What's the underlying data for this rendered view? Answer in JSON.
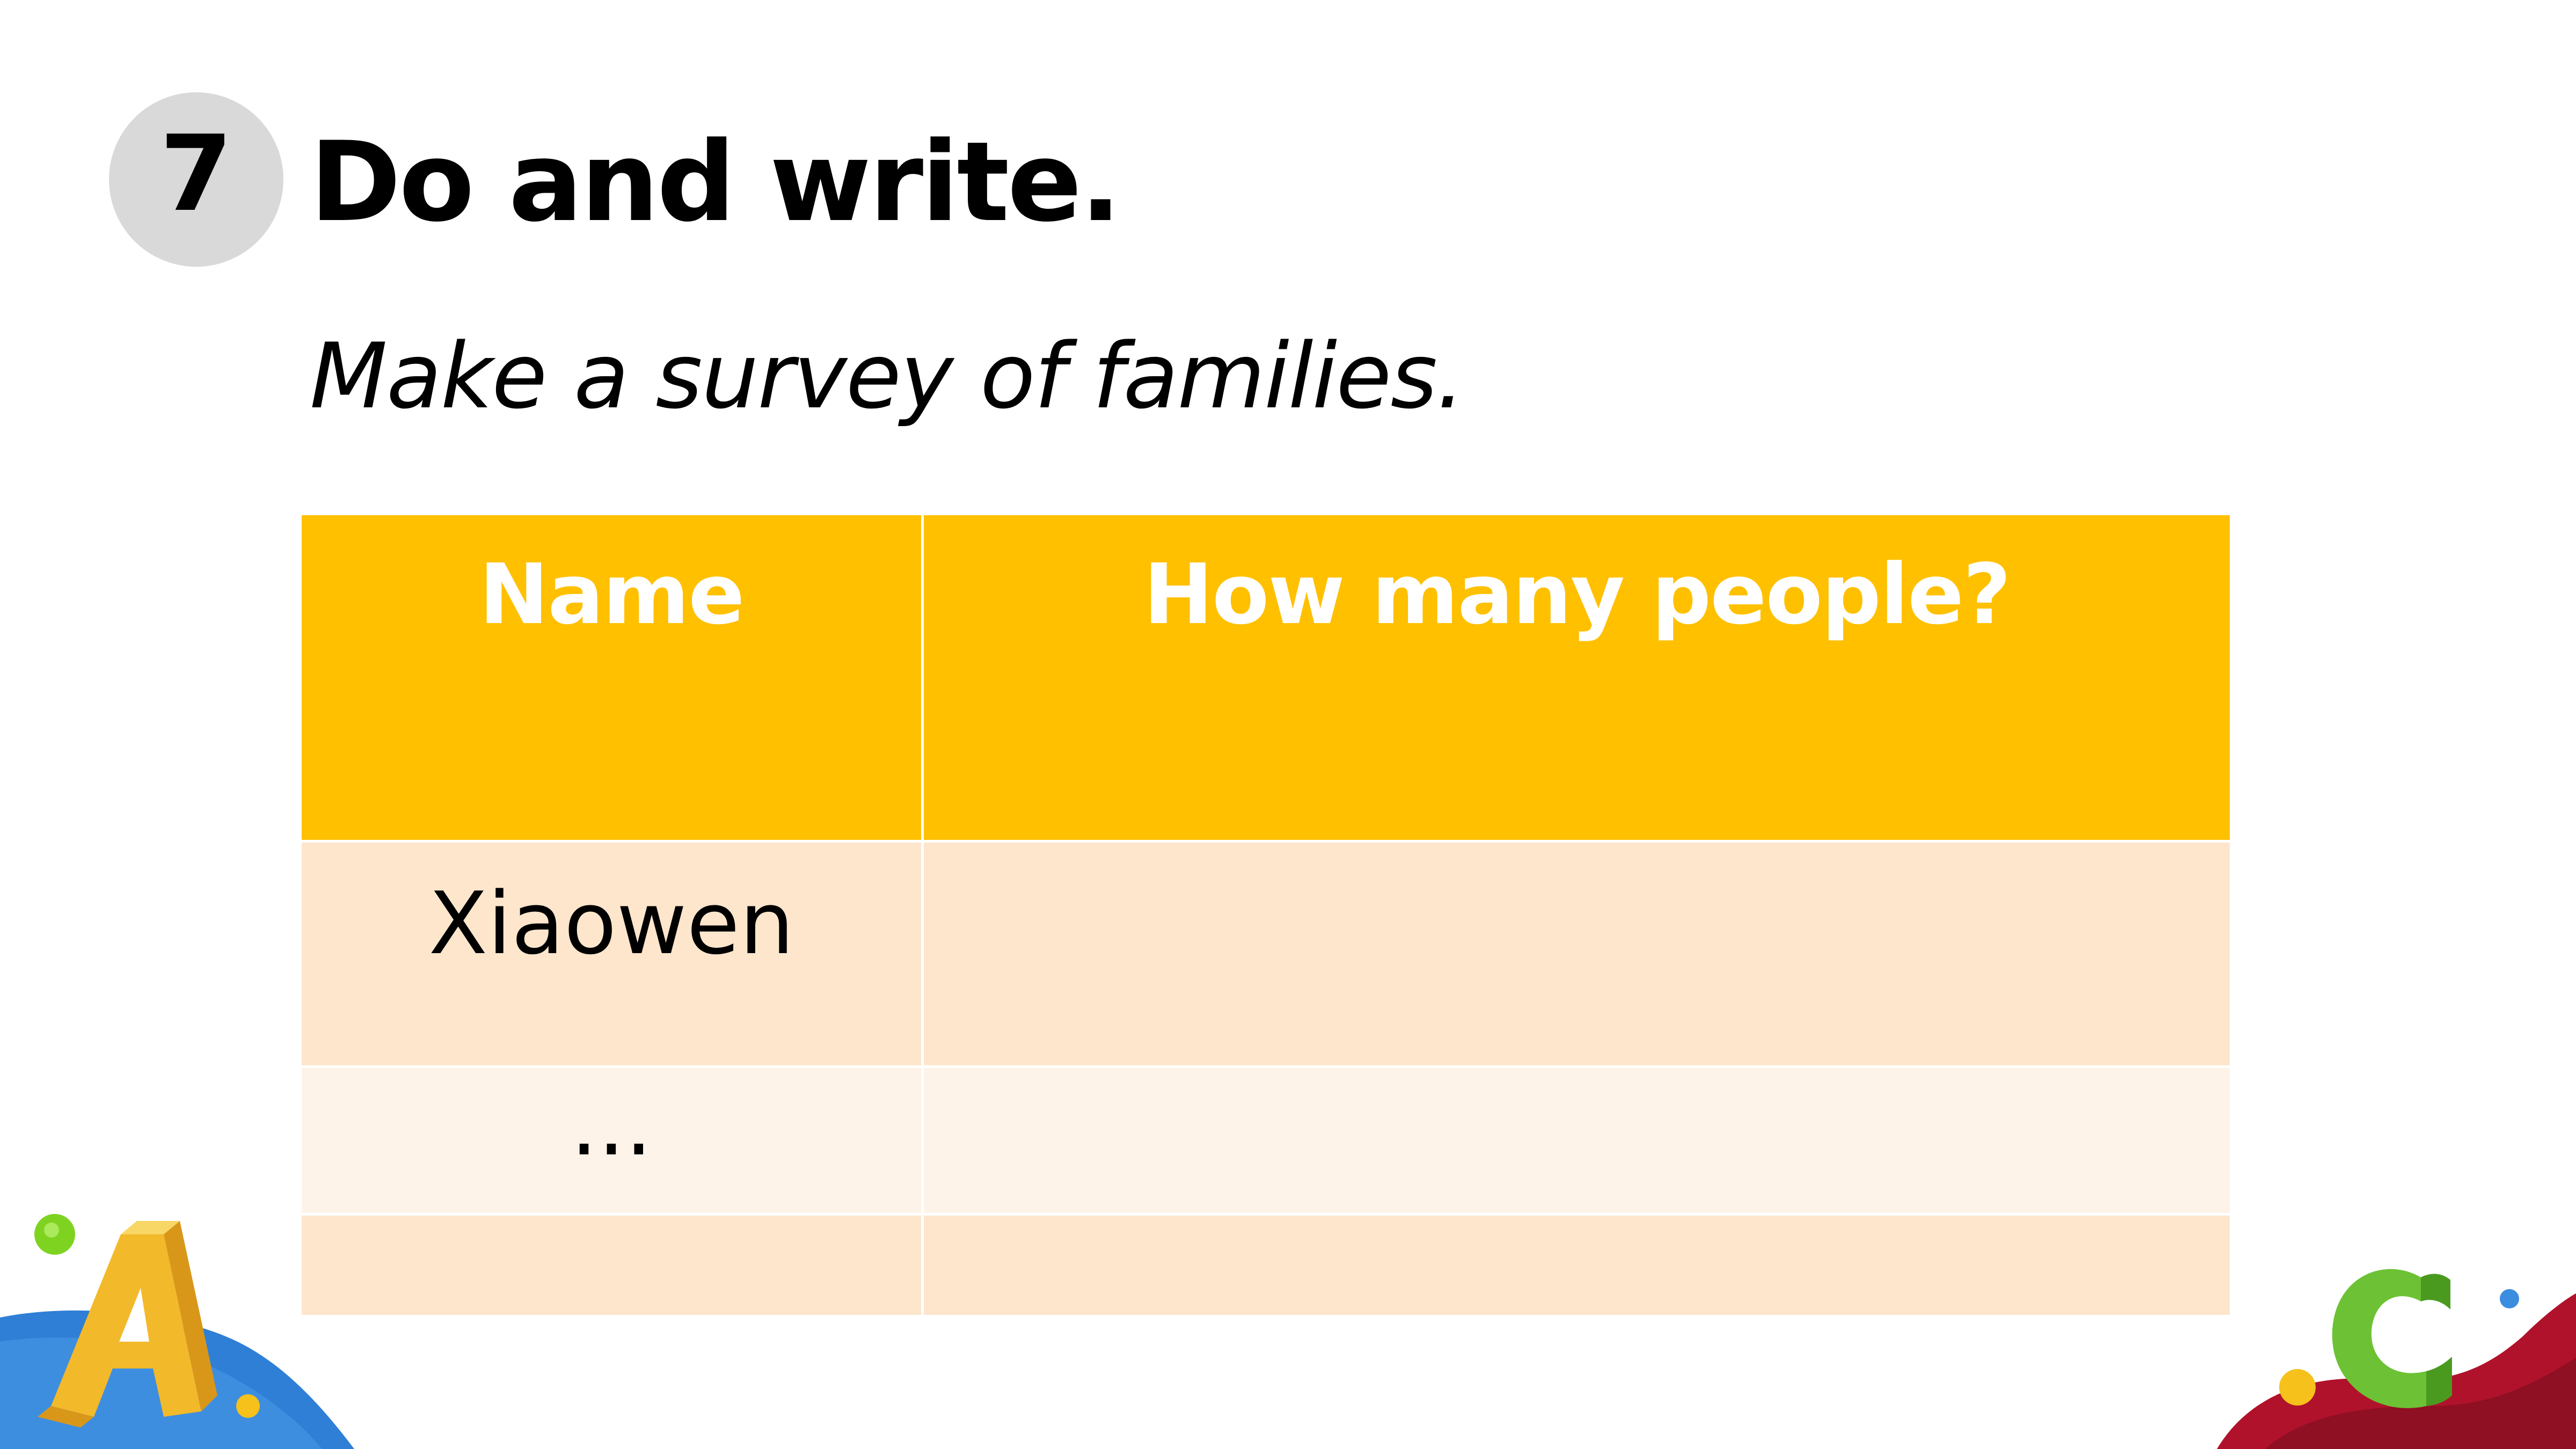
{
  "activity": {
    "number": "7",
    "title": "Do and write.",
    "instruction": "Make a survey of families."
  },
  "table": {
    "headers": [
      "Name",
      "How many people?"
    ],
    "rows": [
      [
        "Xiaowen",
        ""
      ],
      [
        "...",
        ""
      ],
      [
        "",
        ""
      ]
    ]
  },
  "colors": {
    "header_bg": "#ffc000",
    "row_bg_primary": "#fde6cc",
    "row_bg_secondary": "#fdf3e8",
    "badge_bg": "#d9d9d9"
  },
  "decorations": [
    "letter-a-icon",
    "letter-c-icon",
    "blue-wave",
    "red-wave"
  ]
}
